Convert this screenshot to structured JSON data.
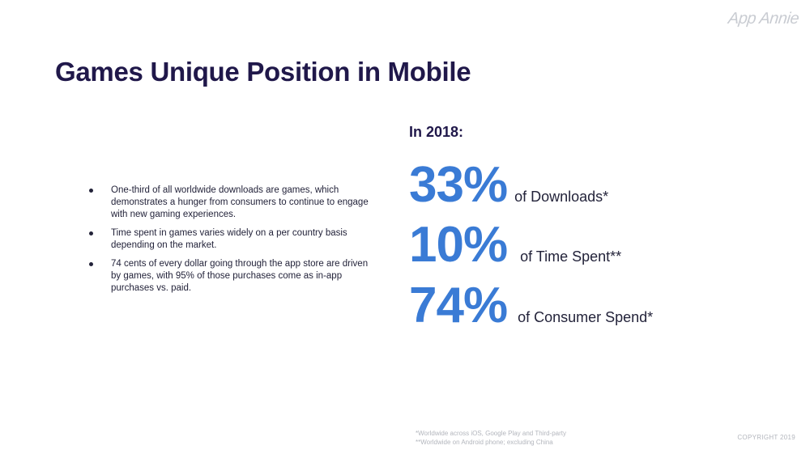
{
  "logo": "App Annie",
  "title": "Games Unique Position in Mobile",
  "bullets": [
    "One-third of all worldwide downloads are games, which demonstrates a hunger from consumers to continue to engage with new gaming experiences.",
    "Time spent in games varies widely on a per country basis depending on the market.",
    "74 cents of every dollar going through the app store are driven by games, with 95% of those purchases come as in-app purchases vs. paid."
  ],
  "stats_heading": "In 2018:",
  "stats": [
    {
      "value": "33%",
      "label": "of Downloads*"
    },
    {
      "value": "10%",
      "label": "of Time Spent**"
    },
    {
      "value": "74%",
      "label": "of Consumer Spend*"
    }
  ],
  "footnotes": [
    "*Worldwide across iOS, Google Play and Third-party",
    "**Worldwide on Android phone; excluding China"
  ],
  "copyright": "COPYRIGHT 2019",
  "colors": {
    "title": "#20184a",
    "accent": "#3a7bd5",
    "muted": "#b3b6bd"
  }
}
